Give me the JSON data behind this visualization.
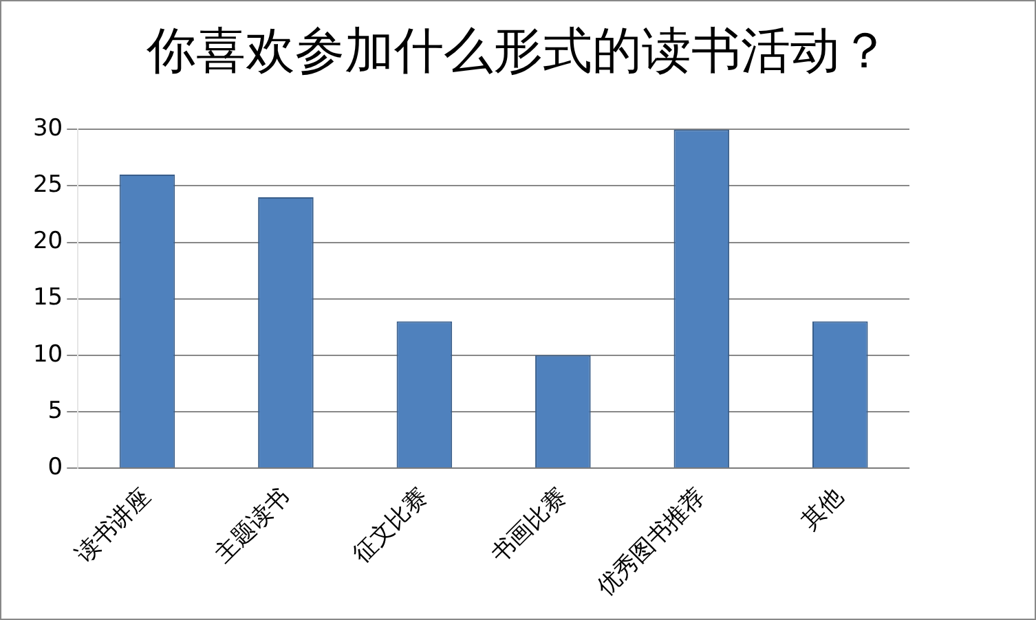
{
  "chart_data": {
    "type": "bar",
    "title": "你喜欢参加什么形式的读书活动？",
    "categories": [
      "读书讲座",
      "主题读书",
      "征文比赛",
      "书画比赛",
      "优秀图书推荐",
      "其他"
    ],
    "values": [
      26,
      24,
      13,
      10,
      30,
      13
    ],
    "color": "#4f81bd",
    "ylim": [
      0,
      30
    ],
    "yticks": [
      0,
      5,
      10,
      15,
      20,
      25,
      30
    ],
    "grid": "y",
    "legend": false
  }
}
